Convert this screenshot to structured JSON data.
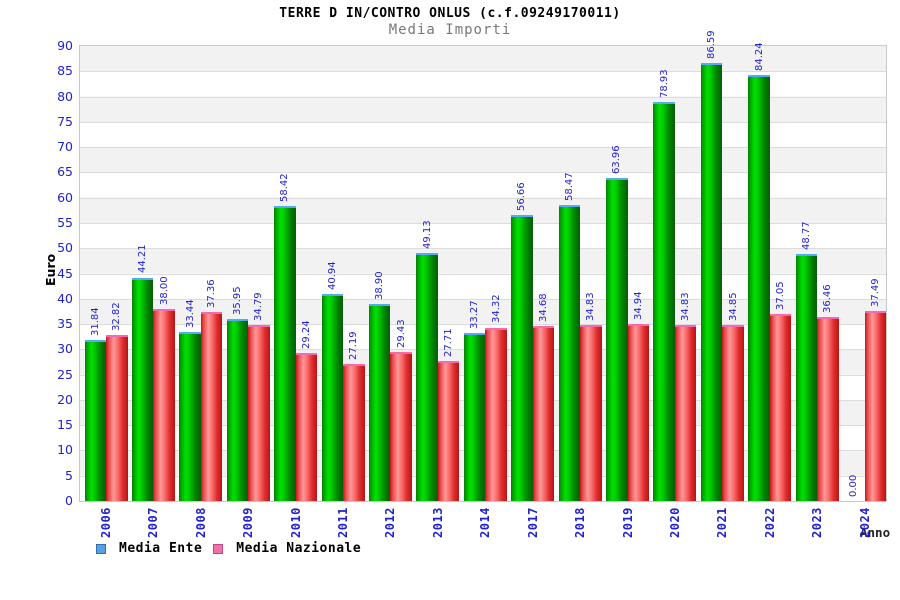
{
  "chart_data": {
    "type": "bar",
    "title": "TERRE D IN/CONTRO ONLUS (c.f.09249170011)",
    "subtitle": "Media Importi",
    "xlabel": "Anno",
    "ylabel": "Euro",
    "ylim": [
      0,
      90
    ],
    "ytick_step": 5,
    "grid": true,
    "legend_position": "bottom-left",
    "categories": [
      "2006",
      "2007",
      "2008",
      "2009",
      "2010",
      "2011",
      "2012",
      "2013",
      "2014",
      "2017",
      "2018",
      "2019",
      "2020",
      "2021",
      "2022",
      "2023",
      "2024"
    ],
    "series": [
      {
        "name": "Media Ente",
        "bar_color": "#00cc00",
        "cap_color": "#58a8f8",
        "legend_swatch_color": "#58a0e0",
        "values": [
          31.84,
          44.21,
          33.44,
          35.95,
          58.42,
          40.94,
          38.9,
          49.13,
          33.27,
          56.66,
          58.47,
          63.96,
          78.93,
          86.59,
          84.24,
          48.77,
          0.0
        ]
      },
      {
        "name": "Media Nazionale",
        "bar_color": "#e03030",
        "cap_color": "#f868b0",
        "legend_swatch_color": "#f070a8",
        "values": [
          32.82,
          38.0,
          37.36,
          34.79,
          29.24,
          27.19,
          29.43,
          27.71,
          34.32,
          34.68,
          34.83,
          34.94,
          34.83,
          34.85,
          37.05,
          36.46,
          37.49
        ]
      }
    ],
    "value_label_color": "#2222cc",
    "axis_label_color": "#2222cc"
  },
  "colors": {
    "background": "#ffffff",
    "band": "#f2f2f2",
    "grid": "#dcdcdc",
    "plot_border": "#c8c8c8",
    "title": "#000000",
    "subtitle": "#787878"
  }
}
